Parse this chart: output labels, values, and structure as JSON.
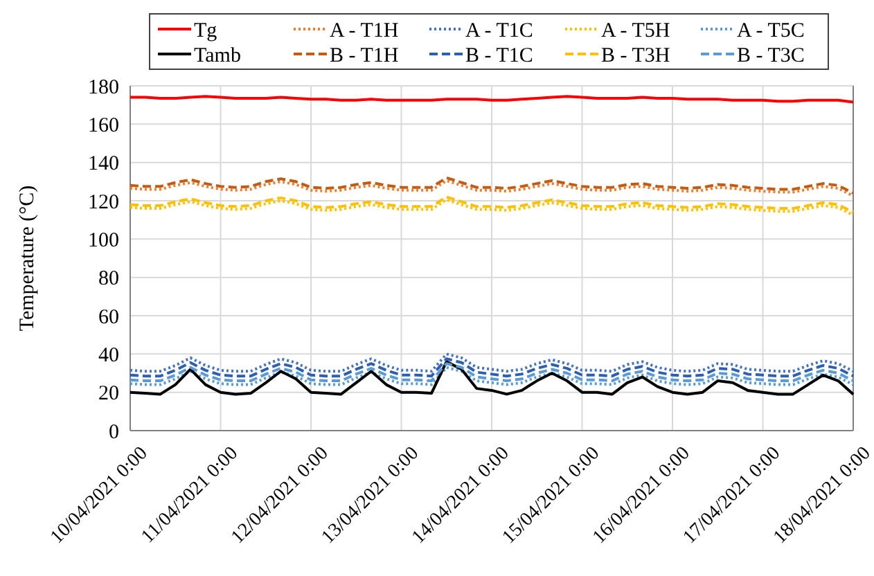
{
  "chart_data": {
    "type": "line",
    "ylabel": "Temperature (°C)",
    "x": [
      "2021-04-10T00:00",
      "2021-04-10T04:00",
      "2021-04-10T08:00",
      "2021-04-10T12:00",
      "2021-04-10T16:00",
      "2021-04-10T20:00",
      "2021-04-11T00:00",
      "2021-04-11T04:00",
      "2021-04-11T08:00",
      "2021-04-11T12:00",
      "2021-04-11T16:00",
      "2021-04-11T20:00",
      "2021-04-12T00:00",
      "2021-04-12T04:00",
      "2021-04-12T08:00",
      "2021-04-12T12:00",
      "2021-04-12T16:00",
      "2021-04-12T20:00",
      "2021-04-13T00:00",
      "2021-04-13T04:00",
      "2021-04-13T08:00",
      "2021-04-13T12:00",
      "2021-04-13T16:00",
      "2021-04-13T20:00",
      "2021-04-14T00:00",
      "2021-04-14T04:00",
      "2021-04-14T08:00",
      "2021-04-14T12:00",
      "2021-04-14T16:00",
      "2021-04-14T20:00",
      "2021-04-15T00:00",
      "2021-04-15T04:00",
      "2021-04-15T08:00",
      "2021-04-15T12:00",
      "2021-04-15T16:00",
      "2021-04-15T20:00",
      "2021-04-16T00:00",
      "2021-04-16T04:00",
      "2021-04-16T08:00",
      "2021-04-16T12:00",
      "2021-04-16T16:00",
      "2021-04-16T20:00",
      "2021-04-17T00:00",
      "2021-04-17T04:00",
      "2021-04-17T08:00",
      "2021-04-17T12:00",
      "2021-04-17T16:00",
      "2021-04-17T20:00",
      "2021-04-18T00:00"
    ],
    "xlim": [
      "2021-04-10T00:00",
      "2021-04-18T00:00"
    ],
    "xticks": [
      {
        "value": "2021-04-10T00:00",
        "label": "10/04/2021 0:00"
      },
      {
        "value": "2021-04-11T00:00",
        "label": "11/04/2021 0:00"
      },
      {
        "value": "2021-04-12T00:00",
        "label": "12/04/2021 0:00"
      },
      {
        "value": "2021-04-13T00:00",
        "label": "13/04/2021 0:00"
      },
      {
        "value": "2021-04-14T00:00",
        "label": "14/04/2021 0:00"
      },
      {
        "value": "2021-04-15T00:00",
        "label": "15/04/2021 0:00"
      },
      {
        "value": "2021-04-16T00:00",
        "label": "16/04/2021 0:00"
      },
      {
        "value": "2021-04-17T00:00",
        "label": "17/04/2021 0:00"
      },
      {
        "value": "2021-04-18T00:00",
        "label": "18/04/2021 0:00"
      }
    ],
    "ylim": [
      0,
      180
    ],
    "yticks": [
      0,
      20,
      40,
      60,
      80,
      100,
      120,
      140,
      160,
      180
    ],
    "grid": true,
    "legend": "top",
    "series": [
      {
        "name": "Tg",
        "color": "#ff0000",
        "line_style": "solid",
        "values": [
          174,
          174,
          173.5,
          173.5,
          174,
          174.5,
          174,
          173.5,
          173.5,
          173.5,
          174,
          173.5,
          173,
          173,
          172.5,
          172.5,
          173,
          172.5,
          172.5,
          172.5,
          172.5,
          173,
          173,
          173,
          172.5,
          172.5,
          173,
          173.5,
          174,
          174.5,
          174,
          173.5,
          173.5,
          173.5,
          174,
          173.5,
          173.5,
          173,
          173,
          173,
          172.5,
          172.5,
          172.5,
          172,
          172,
          172.5,
          172.5,
          172.5,
          171.5
        ]
      },
      {
        "name": "A - T1H",
        "color": "#ed7d31",
        "line_style": "dotted",
        "values": [
          126.5,
          126,
          126,
          128,
          129.5,
          127.5,
          126,
          125.5,
          126,
          128.5,
          130,
          128.5,
          125.5,
          125,
          125.5,
          127,
          128,
          126.5,
          125.5,
          125.5,
          125.5,
          130.5,
          128,
          125.5,
          125.5,
          125,
          126,
          127.5,
          129,
          127.5,
          126,
          125.5,
          125.5,
          127,
          127.5,
          126,
          125.5,
          125,
          125.5,
          127,
          126.5,
          125.5,
          125,
          124.5,
          124.5,
          126,
          127.5,
          126.5,
          122.5
        ]
      },
      {
        "name": "A - T1C",
        "color": "#4472c4",
        "line_style": "dotted",
        "values": [
          31.5,
          31,
          31,
          34,
          38,
          34,
          31.5,
          31,
          31,
          34.5,
          37.5,
          35.5,
          31.5,
          31,
          31,
          34.5,
          37.5,
          34,
          31.5,
          31.5,
          31,
          40,
          38,
          33,
          32,
          31,
          32,
          35,
          37,
          35,
          31.5,
          31.5,
          31,
          34.5,
          36,
          33,
          31.5,
          31,
          31.5,
          35,
          34.5,
          32,
          31.5,
          31,
          31,
          34,
          36.5,
          35,
          31
        ]
      },
      {
        "name": "A - T5H",
        "color": "#ffc000",
        "line_style": "dotted",
        "values": [
          116.5,
          116,
          116,
          118,
          119.5,
          117.5,
          116,
          115.5,
          116,
          118.5,
          120,
          118.5,
          115.5,
          115,
          115.5,
          117,
          118,
          116.5,
          115.5,
          115.5,
          115.5,
          120.5,
          118,
          115.5,
          115.5,
          115,
          116,
          117.5,
          119,
          117.5,
          116,
          115.5,
          115.5,
          117,
          117.5,
          116,
          115.5,
          115,
          115.5,
          117,
          116.5,
          115.5,
          115,
          114.5,
          114.5,
          116,
          117.5,
          116.5,
          112.5
        ]
      },
      {
        "name": "A - T5C",
        "color": "#5b9bd5",
        "line_style": "dotted",
        "values": [
          24.5,
          24,
          24,
          27,
          31,
          27,
          24.5,
          24,
          24,
          27.5,
          30.5,
          28.5,
          24.5,
          24,
          24,
          27.5,
          30.5,
          27,
          24.5,
          24.5,
          24,
          33,
          31,
          26,
          25,
          24,
          25,
          28,
          30,
          28,
          24.5,
          24.5,
          24,
          27.5,
          29,
          26,
          24.5,
          24,
          24.5,
          28,
          27.5,
          25,
          24.5,
          24,
          24,
          27,
          29.5,
          28,
          24
        ]
      },
      {
        "name": "Tamb",
        "color": "#000000",
        "line_style": "solid",
        "values": [
          20,
          19.5,
          19,
          24,
          32,
          24,
          20,
          19,
          19.5,
          25,
          31,
          27,
          20,
          19.5,
          19,
          25,
          31,
          24,
          20,
          20,
          19.5,
          36,
          32,
          22,
          21,
          19,
          21,
          26,
          30,
          26,
          20,
          20,
          19,
          25,
          28,
          23,
          20,
          19,
          20,
          26,
          25,
          21,
          20,
          19,
          19,
          24,
          29,
          26,
          19
        ]
      },
      {
        "name": "B - T1H",
        "color": "#c55a11",
        "line_style": "dashed",
        "values": [
          128,
          127.5,
          127.5,
          129.5,
          131,
          129,
          127.5,
          127,
          127.5,
          130,
          131.5,
          130,
          127,
          126.5,
          127,
          128.5,
          129.5,
          128,
          127,
          127,
          127,
          132,
          129.5,
          127,
          127,
          126.5,
          127.5,
          129,
          130.5,
          129,
          127.5,
          127,
          127,
          128.5,
          129,
          127.5,
          127,
          126.5,
          127,
          128.5,
          128,
          127,
          126.5,
          126,
          126,
          127.5,
          129,
          128,
          124
        ]
      },
      {
        "name": "B - T1C",
        "color": "#2f5fb3",
        "line_style": "dashed",
        "values": [
          29,
          28.5,
          28.5,
          31.5,
          35.5,
          31.5,
          29,
          28.5,
          28.5,
          32,
          35,
          33,
          29,
          28.5,
          28.5,
          32,
          35,
          31.5,
          29,
          29,
          28.5,
          37.5,
          35.5,
          30.5,
          29.5,
          28.5,
          29.5,
          32.5,
          34.5,
          32.5,
          29,
          29,
          28.5,
          32,
          33.5,
          30.5,
          29,
          28.5,
          29,
          32.5,
          32,
          29.5,
          29,
          28.5,
          28.5,
          31.5,
          34,
          32.5,
          28.5
        ]
      },
      {
        "name": "B - T3H",
        "color": "#ffc000",
        "line_style": "dashed",
        "values": [
          118,
          117.5,
          117.5,
          119.5,
          121,
          119,
          117.5,
          117,
          117.5,
          120,
          121.5,
          120,
          117,
          116.5,
          117,
          118.5,
          119.5,
          118,
          117,
          117,
          117,
          122,
          119.5,
          117,
          117,
          116.5,
          117.5,
          119,
          120.5,
          119,
          117.5,
          117,
          117,
          118.5,
          119,
          117.5,
          117,
          116.5,
          117,
          118.5,
          118,
          117,
          116.5,
          116,
          116,
          117.5,
          119,
          118,
          114
        ]
      },
      {
        "name": "B - T3C",
        "color": "#5b9bd5",
        "line_style": "dashed",
        "values": [
          26.5,
          26,
          26,
          29,
          33,
          29,
          26.5,
          26,
          26,
          29.5,
          32.5,
          30.5,
          26.5,
          26,
          26,
          29.5,
          32.5,
          29,
          26.5,
          26.5,
          26,
          35,
          33,
          28,
          27,
          26,
          27,
          30,
          32,
          30,
          26.5,
          26.5,
          26,
          29.5,
          31,
          28,
          26.5,
          26,
          26.5,
          30,
          29.5,
          27,
          26.5,
          26,
          26,
          29,
          31.5,
          30,
          26
        ]
      }
    ]
  }
}
